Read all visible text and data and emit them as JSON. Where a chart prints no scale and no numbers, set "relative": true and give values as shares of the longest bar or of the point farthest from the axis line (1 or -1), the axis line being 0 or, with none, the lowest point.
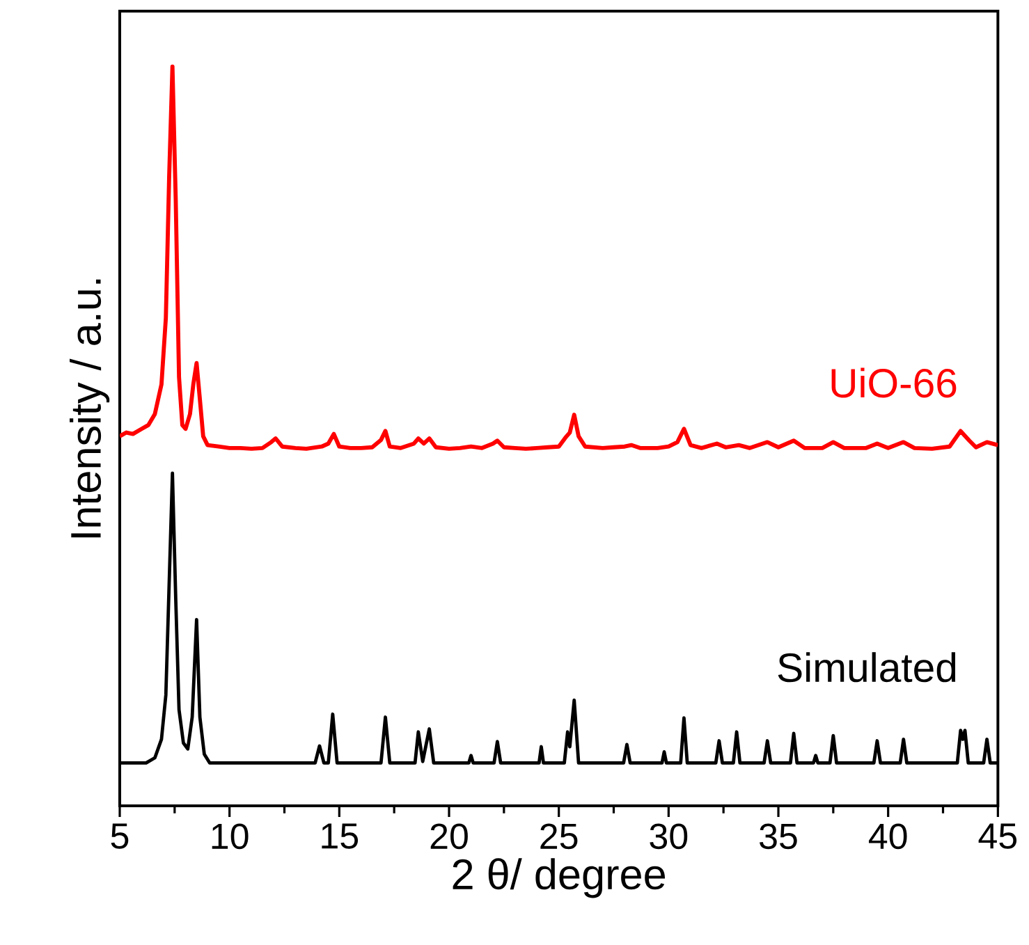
{
  "chart_data": {
    "type": "line",
    "relative": true,
    "xlabel": "2 θ/ degree",
    "ylabel": "Intensity / a.u.",
    "xlim": [
      5,
      45
    ],
    "xticks": [
      5,
      10,
      15,
      20,
      25,
      30,
      35,
      40,
      45
    ],
    "series": [
      {
        "name": "UiO-66",
        "color": "#ff0000",
        "x": [
          5.0,
          5.3,
          5.6,
          6.0,
          6.3,
          6.6,
          6.9,
          7.1,
          7.25,
          7.4,
          7.55,
          7.7,
          7.85,
          8.0,
          8.2,
          8.35,
          8.5,
          8.65,
          8.8,
          9.0,
          9.5,
          10.0,
          10.5,
          11.0,
          11.5,
          11.9,
          12.1,
          12.4,
          13.0,
          13.5,
          14.2,
          14.5,
          14.75,
          15.0,
          15.5,
          16.0,
          16.5,
          16.9,
          17.1,
          17.3,
          17.8,
          18.4,
          18.6,
          18.85,
          19.1,
          19.4,
          20.0,
          20.5,
          21.0,
          21.5,
          22.0,
          22.2,
          22.5,
          23.0,
          23.5,
          24.0,
          24.5,
          25.0,
          25.3,
          25.5,
          25.7,
          25.9,
          26.2,
          27.0,
          27.5,
          28.0,
          28.3,
          28.7,
          29.5,
          30.0,
          30.4,
          30.7,
          31.0,
          31.5,
          32.2,
          32.6,
          33.2,
          33.7,
          34.5,
          35.0,
          35.7,
          36.2,
          37.0,
          37.5,
          38.0,
          39.0,
          39.5,
          40.0,
          40.7,
          41.2,
          42.0,
          42.8,
          43.3,
          43.7,
          44.0,
          44.5,
          45.0
        ],
        "values": [
          0.5,
          0.505,
          0.503,
          0.51,
          0.515,
          0.53,
          0.57,
          0.66,
          0.85,
          1.0,
          0.82,
          0.58,
          0.515,
          0.51,
          0.53,
          0.57,
          0.599,
          0.55,
          0.5,
          0.488,
          0.486,
          0.484,
          0.484,
          0.483,
          0.484,
          0.492,
          0.497,
          0.486,
          0.484,
          0.483,
          0.486,
          0.49,
          0.503,
          0.486,
          0.484,
          0.484,
          0.485,
          0.495,
          0.507,
          0.486,
          0.484,
          0.49,
          0.497,
          0.49,
          0.497,
          0.485,
          0.483,
          0.484,
          0.486,
          0.484,
          0.49,
          0.494,
          0.485,
          0.484,
          0.483,
          0.484,
          0.485,
          0.486,
          0.498,
          0.505,
          0.529,
          0.5,
          0.486,
          0.484,
          0.485,
          0.486,
          0.488,
          0.484,
          0.484,
          0.486,
          0.492,
          0.51,
          0.488,
          0.484,
          0.49,
          0.485,
          0.488,
          0.484,
          0.492,
          0.485,
          0.494,
          0.484,
          0.484,
          0.492,
          0.484,
          0.484,
          0.49,
          0.484,
          0.492,
          0.484,
          0.483,
          0.486,
          0.507,
          0.494,
          0.485,
          0.492,
          0.488
        ]
      },
      {
        "name": "Simulated",
        "color": "#000000",
        "x": [
          5.0,
          6.2,
          6.6,
          6.9,
          7.1,
          7.25,
          7.4,
          7.55,
          7.7,
          7.9,
          8.1,
          8.3,
          8.5,
          8.65,
          8.85,
          9.1,
          13.9,
          14.1,
          14.3,
          14.5,
          14.7,
          14.9,
          16.9,
          17.1,
          17.3,
          18.45,
          18.6,
          18.8,
          19.1,
          19.3,
          20.9,
          21.0,
          21.1,
          22.05,
          22.2,
          22.35,
          24.1,
          24.2,
          24.3,
          25.25,
          25.4,
          25.5,
          25.7,
          25.9,
          27.95,
          28.1,
          28.25,
          29.7,
          29.8,
          29.9,
          30.55,
          30.7,
          30.85,
          32.15,
          32.3,
          32.45,
          32.95,
          33.1,
          33.25,
          34.35,
          34.5,
          34.65,
          35.55,
          35.7,
          35.85,
          36.6,
          36.7,
          36.8,
          37.35,
          37.5,
          37.65,
          39.35,
          39.5,
          39.65,
          40.55,
          40.7,
          40.85,
          43.15,
          43.3,
          43.4,
          43.5,
          43.65,
          44.35,
          44.5,
          44.65,
          45.0
        ],
        "values": [
          0.058,
          0.058,
          0.065,
          0.09,
          0.15,
          0.3,
          0.45,
          0.28,
          0.13,
          0.085,
          0.077,
          0.12,
          0.252,
          0.12,
          0.07,
          0.058,
          0.058,
          0.081,
          0.058,
          0.058,
          0.124,
          0.058,
          0.058,
          0.12,
          0.058,
          0.058,
          0.1,
          0.06,
          0.104,
          0.058,
          0.058,
          0.068,
          0.058,
          0.058,
          0.087,
          0.058,
          0.058,
          0.08,
          0.058,
          0.058,
          0.1,
          0.08,
          0.143,
          0.058,
          0.058,
          0.083,
          0.058,
          0.058,
          0.073,
          0.058,
          0.058,
          0.119,
          0.058,
          0.058,
          0.088,
          0.058,
          0.058,
          0.1,
          0.058,
          0.058,
          0.088,
          0.058,
          0.058,
          0.098,
          0.058,
          0.058,
          0.068,
          0.058,
          0.058,
          0.095,
          0.058,
          0.058,
          0.088,
          0.058,
          0.058,
          0.09,
          0.058,
          0.058,
          0.102,
          0.09,
          0.102,
          0.058,
          0.058,
          0.09,
          0.058,
          0.058
        ]
      }
    ]
  }
}
